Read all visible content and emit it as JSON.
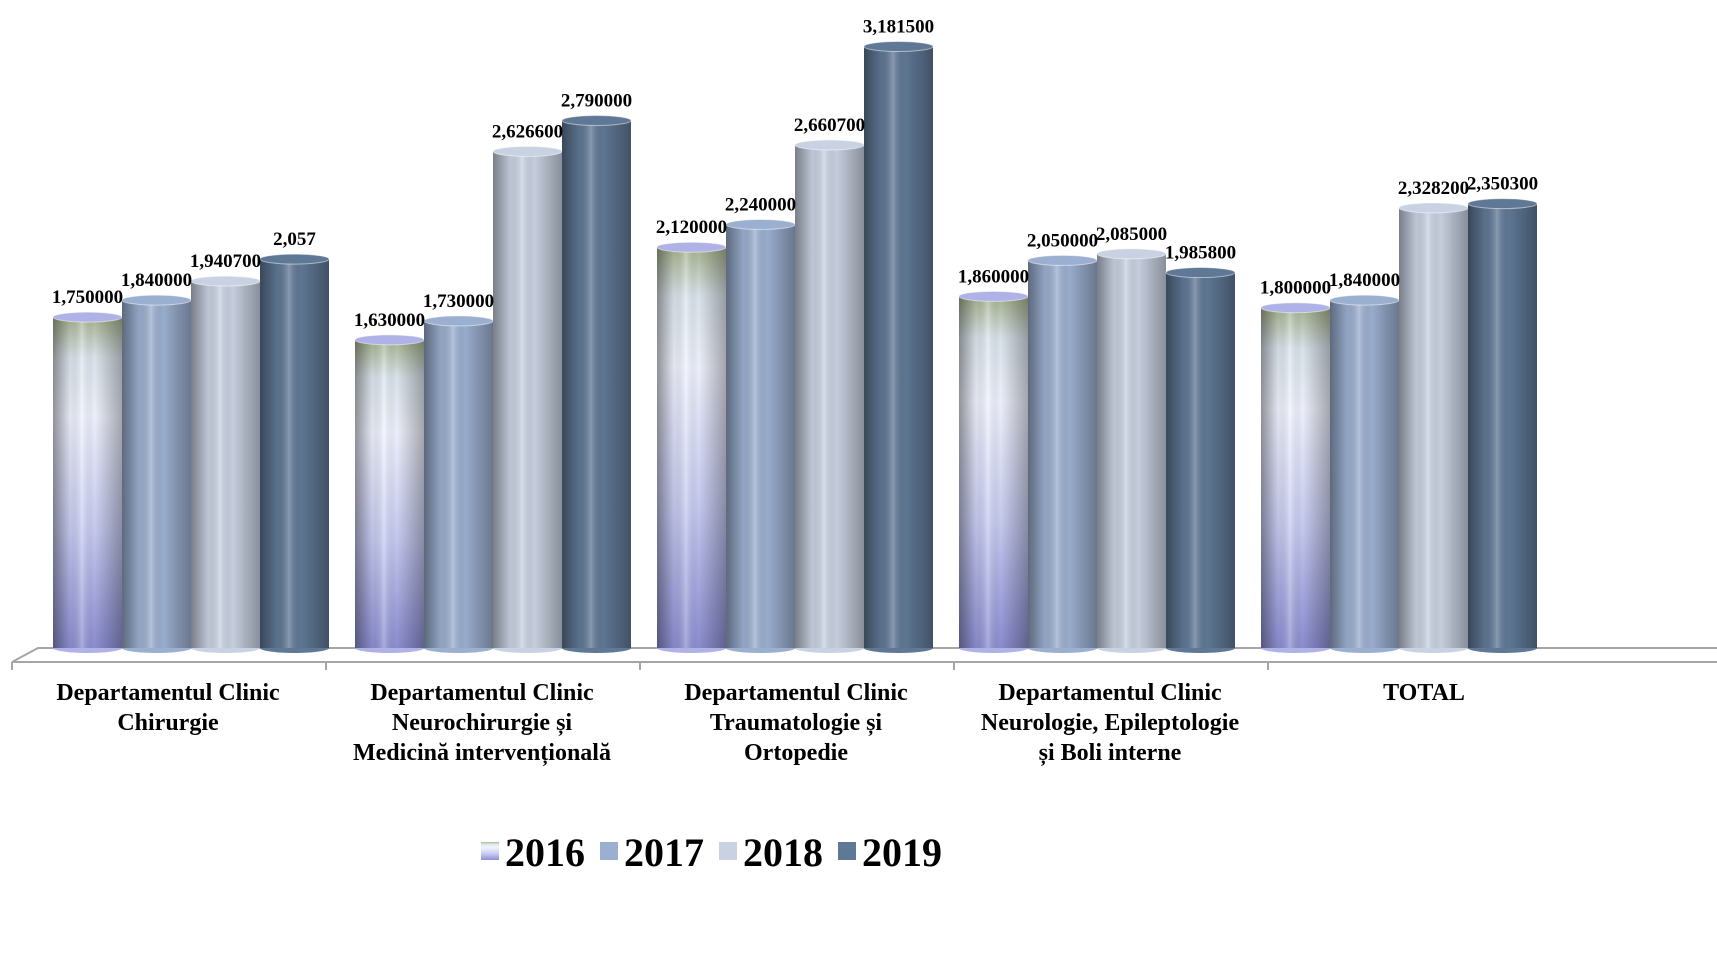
{
  "chart_data": {
    "type": "bar",
    "categories": [
      [
        "Departamentul Clinic",
        "Chirurgie"
      ],
      [
        "Departamentul Clinic",
        "Neurochirurgie și",
        "Medicină intervențională"
      ],
      [
        "Departamentul Clinic",
        "Traumatologie și",
        "Ortopedie"
      ],
      [
        "Departamentul Clinic",
        "Neurologie, Epileptologie",
        "și Boli interne"
      ],
      [
        "TOTAL"
      ]
    ],
    "series": [
      {
        "name": "2016",
        "values": [
          1.75,
          1.63,
          2.12,
          1.86,
          1.8
        ],
        "labels": [
          "1,750000",
          "1,630000",
          "2,120000",
          "1,860000",
          "1,800000"
        ]
      },
      {
        "name": "2017",
        "values": [
          1.84,
          1.73,
          2.24,
          2.05,
          1.84
        ],
        "labels": [
          "1,840000",
          "1,730000",
          "2,240000",
          "2,050000",
          "1,840000"
        ]
      },
      {
        "name": "2018",
        "values": [
          1.9407,
          2.6266,
          2.6607,
          2.085,
          2.3282
        ],
        "labels": [
          "1,940700",
          "2,626600",
          "2,660700",
          "2,085000",
          "2,328200"
        ]
      },
      {
        "name": "2019",
        "values": [
          2.057,
          2.79,
          3.1815,
          1.9858,
          2.3503
        ],
        "labels": [
          "2,057",
          "2,790000",
          "3,181500",
          "1,985800",
          "2,350300"
        ]
      }
    ],
    "colors": {
      "2016": "#aeb2e6",
      "2017": "#9bafd0",
      "2018": "#c9d2e2",
      "2019": "#5f7895"
    },
    "ylim": [
      0,
      3.2
    ],
    "grid": false,
    "legend_position": "bottom"
  }
}
